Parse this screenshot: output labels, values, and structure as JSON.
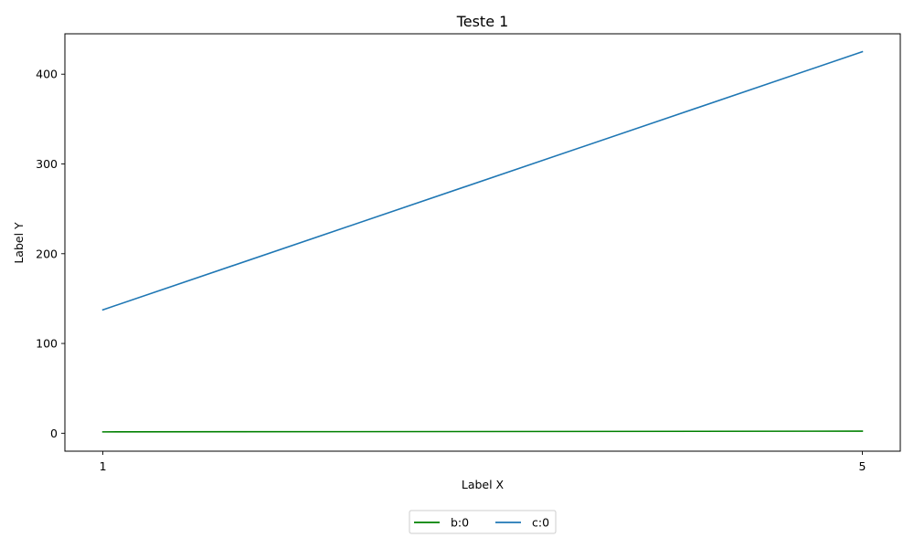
{
  "chart_data": {
    "type": "line",
    "title": "Teste 1",
    "xlabel": "Label X",
    "ylabel": "Label Y",
    "x": [
      1,
      5
    ],
    "xticks": [
      1,
      5
    ],
    "xlim": [
      0.8,
      5.2
    ],
    "yticks": [
      0,
      100,
      200,
      300,
      400
    ],
    "ylim": [
      -20,
      445
    ],
    "grid": false,
    "legend_position": "bottom-center",
    "series": [
      {
        "name": "b:0",
        "color": "#008000",
        "values": [
          1.5,
          2.3
        ]
      },
      {
        "name": "c:0",
        "color": "#1f77b4",
        "values": [
          137.5,
          425
        ]
      }
    ]
  }
}
